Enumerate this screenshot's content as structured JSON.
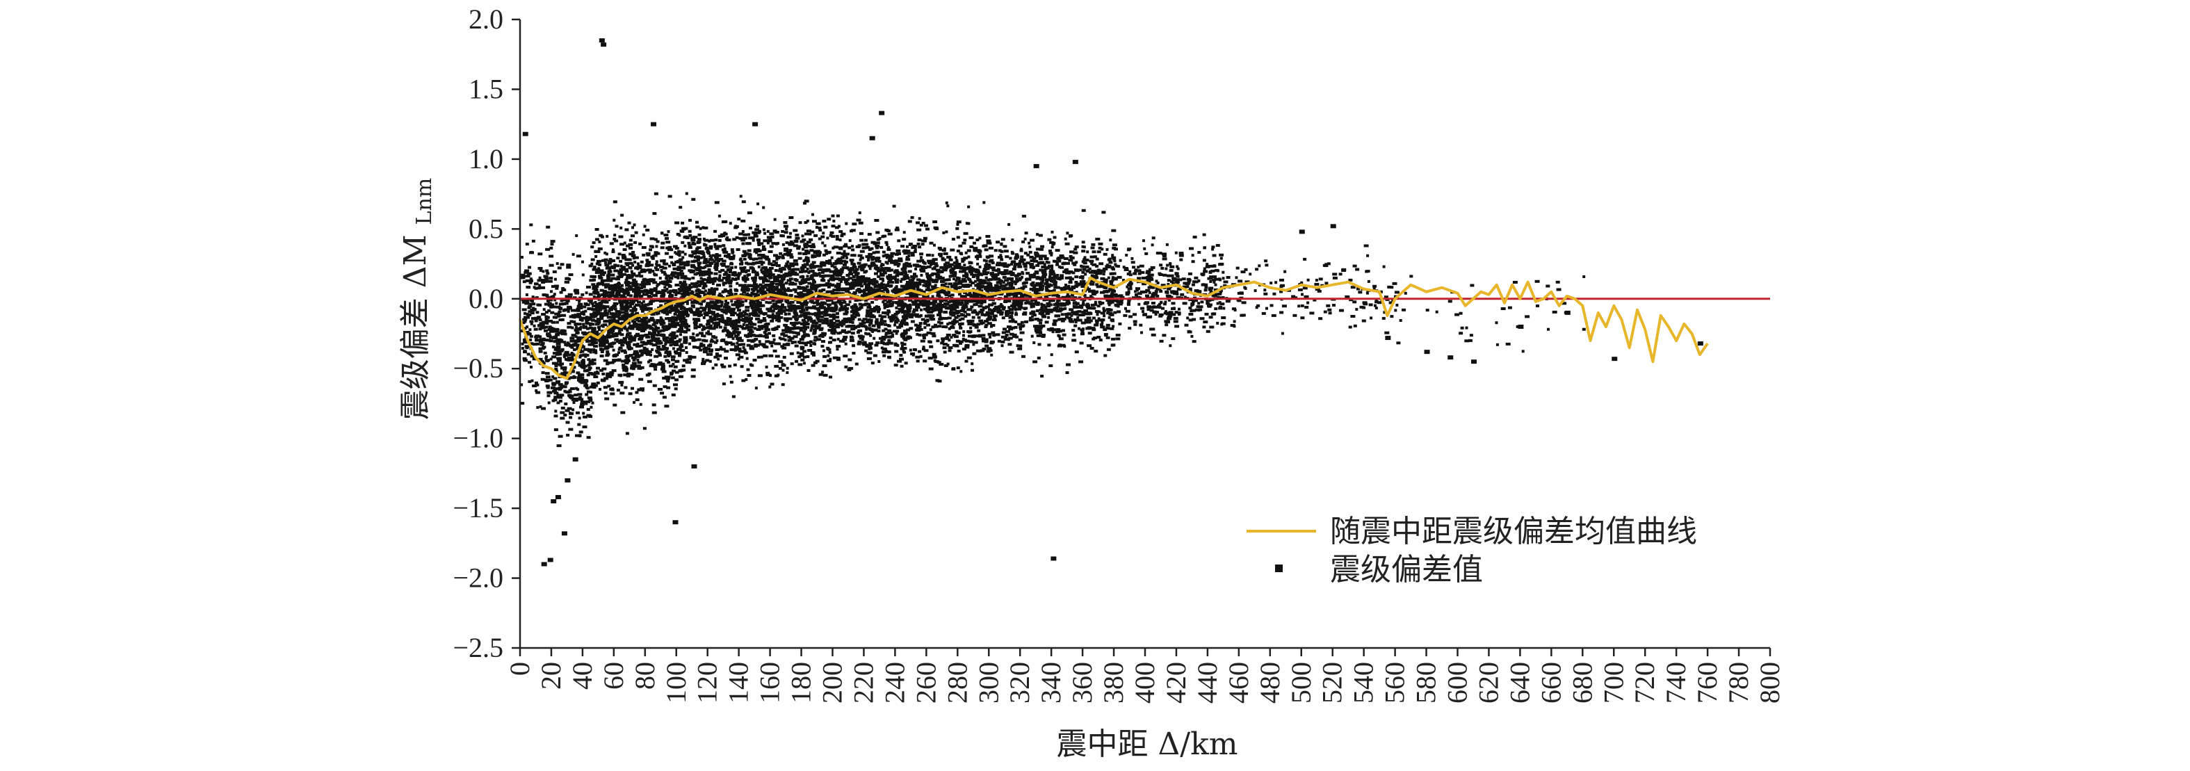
{
  "chart_data": {
    "type": "scatter",
    "title": "",
    "xlabel": "震中距 Δ/km",
    "ylabel": "震级偏差 ΔM",
    "ylabel_subscript": "Lnm",
    "xlim": [
      0,
      800
    ],
    "ylim": [
      -2.5,
      2.0
    ],
    "x_ticks": [
      "0",
      "20",
      "40",
      "60",
      "80",
      "100",
      "120",
      "140",
      "160",
      "180",
      "200",
      "220",
      "240",
      "260",
      "280",
      "300",
      "320",
      "340",
      "360",
      "380",
      "400",
      "420",
      "440",
      "460",
      "480",
      "500",
      "520",
      "540",
      "560",
      "580",
      "600",
      "620",
      "640",
      "660",
      "680",
      "700",
      "720",
      "740",
      "760",
      "780",
      "800"
    ],
    "y_ticks": [
      "2.0",
      "1.5",
      "1.0",
      "0.5",
      "0.0",
      "−0.5",
      "−1.0",
      "−1.5",
      "−2.0",
      "−2.5"
    ],
    "reference_line": {
      "y": 0.0,
      "color": "#c0262d"
    },
    "legend": {
      "position": "lower-right",
      "entries": [
        "随震中距震级偏差均值曲线",
        "震级偏差值"
      ]
    },
    "colors": {
      "mean_curve": "#e8b62a",
      "scatter": "#111111",
      "zero_line": "#c0262d"
    },
    "series": [
      {
        "name": "随震中距震级偏差均值曲线",
        "kind": "line",
        "x": [
          0,
          5,
          10,
          15,
          20,
          25,
          30,
          35,
          40,
          45,
          50,
          55,
          60,
          65,
          70,
          75,
          80,
          85,
          90,
          95,
          100,
          105,
          110,
          115,
          120,
          130,
          140,
          150,
          160,
          170,
          180,
          190,
          200,
          210,
          220,
          230,
          240,
          250,
          260,
          270,
          280,
          290,
          300,
          310,
          320,
          330,
          340,
          350,
          360,
          365,
          370,
          380,
          390,
          400,
          410,
          420,
          430,
          440,
          450,
          460,
          470,
          480,
          490,
          500,
          510,
          520,
          530,
          540,
          550,
          555,
          560,
          565,
          570,
          580,
          590,
          600,
          605,
          610,
          615,
          620,
          625,
          630,
          635,
          640,
          645,
          650,
          655,
          660,
          665,
          670,
          675,
          680,
          685,
          690,
          695,
          700,
          705,
          710,
          715,
          720,
          725,
          730,
          735,
          740,
          745,
          750,
          755,
          760
        ],
        "y": [
          -0.15,
          -0.3,
          -0.42,
          -0.48,
          -0.5,
          -0.55,
          -0.57,
          -0.45,
          -0.3,
          -0.25,
          -0.28,
          -0.22,
          -0.18,
          -0.2,
          -0.15,
          -0.12,
          -0.12,
          -0.09,
          -0.07,
          -0.04,
          -0.02,
          -0.01,
          0.02,
          -0.01,
          0.02,
          0.0,
          0.02,
          0.0,
          0.03,
          0.01,
          -0.01,
          0.04,
          0.02,
          0.03,
          0.0,
          0.04,
          0.02,
          0.06,
          0.03,
          0.08,
          0.05,
          0.06,
          0.03,
          0.05,
          0.06,
          0.02,
          0.04,
          0.05,
          0.03,
          0.15,
          0.12,
          0.08,
          0.14,
          0.12,
          0.08,
          0.1,
          0.04,
          0.02,
          0.08,
          0.1,
          0.12,
          0.08,
          0.06,
          0.1,
          0.08,
          0.1,
          0.12,
          0.07,
          0.05,
          -0.12,
          0.0,
          0.05,
          0.1,
          0.05,
          0.08,
          0.04,
          -0.05,
          0.0,
          0.05,
          0.03,
          0.1,
          -0.03,
          0.1,
          0.0,
          0.12,
          -0.02,
          0.0,
          0.05,
          -0.05,
          0.02,
          0.0,
          -0.05,
          -0.3,
          -0.1,
          -0.2,
          -0.05,
          -0.15,
          -0.35,
          -0.08,
          -0.22,
          -0.45,
          -0.12,
          -0.2,
          -0.3,
          -0.18,
          -0.25,
          -0.4,
          -0.32
        ]
      },
      {
        "name": "震级偏差值",
        "kind": "scatter",
        "density_bands": [
          {
            "from": 0,
            "to": 20,
            "center": -0.15,
            "spread": 0.55,
            "count": 250
          },
          {
            "from": 20,
            "to": 45,
            "center": -0.35,
            "spread": 0.55,
            "count": 450
          },
          {
            "from": 45,
            "to": 100,
            "center": -0.08,
            "spread": 0.55,
            "count": 1300
          },
          {
            "from": 100,
            "to": 200,
            "center": 0.03,
            "spread": 0.5,
            "count": 2100
          },
          {
            "from": 200,
            "to": 300,
            "center": 0.05,
            "spread": 0.45,
            "count": 1800
          },
          {
            "from": 300,
            "to": 380,
            "center": 0.06,
            "spread": 0.38,
            "count": 1050
          },
          {
            "from": 380,
            "to": 450,
            "center": 0.07,
            "spread": 0.3,
            "count": 420
          },
          {
            "from": 450,
            "to": 560,
            "center": 0.05,
            "spread": 0.25,
            "count": 160
          },
          {
            "from": 560,
            "to": 680,
            "center": -0.1,
            "spread": 0.25,
            "count": 40
          }
        ],
        "outliers": [
          [
            52,
            1.85
          ],
          [
            53,
            1.82
          ],
          [
            99,
            -1.6
          ],
          [
            111,
            -1.2
          ],
          [
            341,
            -1.86
          ],
          [
            19,
            -1.87
          ],
          [
            28,
            -1.68
          ],
          [
            21,
            -1.45
          ],
          [
            24,
            -1.42
          ],
          [
            30,
            -1.3
          ],
          [
            35,
            -1.15
          ],
          [
            3,
            1.18
          ],
          [
            85,
            1.25
          ],
          [
            150,
            1.25
          ],
          [
            231,
            1.33
          ],
          [
            225,
            1.15
          ],
          [
            330,
            0.95
          ],
          [
            355,
            0.98
          ],
          [
            700,
            -0.43
          ],
          [
            755,
            -0.32
          ],
          [
            610,
            -0.45
          ],
          [
            640,
            -0.2
          ],
          [
            595,
            -0.42
          ],
          [
            580,
            -0.38
          ],
          [
            555,
            -0.28
          ],
          [
            520,
            0.52
          ],
          [
            500,
            0.48
          ],
          [
            670,
            -0.1
          ],
          [
            15,
            -1.9
          ]
        ]
      }
    ]
  }
}
